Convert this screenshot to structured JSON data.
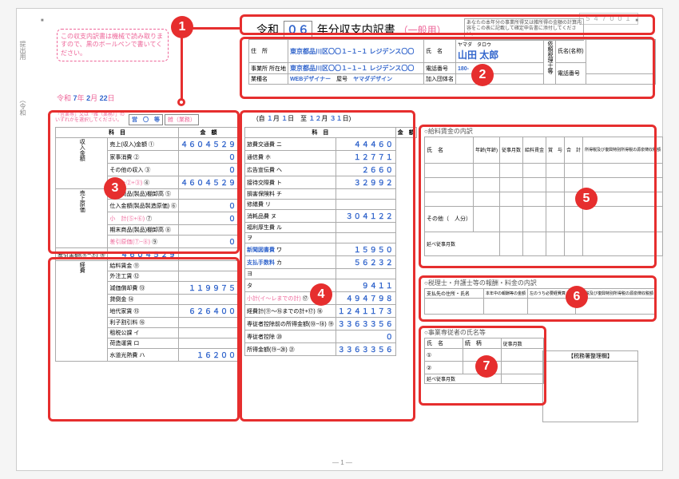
{
  "doc": {
    "title_prefix": "令和",
    "year": "０６",
    "title_suffix": "年分収支内訳書",
    "general": "（一般用）",
    "note": "あなたの本年分の事業所得又は雑所得の金額の計算内容をこの表に記載して確定申告書に添付してください。",
    "pink_note": "この収支内訳書は機械で読み取りますので、黒のボールペンで書いてください。",
    "footer": "— 1 —",
    "code": "５４７００１"
  },
  "side": {
    "tab1": "提出用",
    "tab2": "（令和"
  },
  "date": {
    "era": "令和",
    "y": "7",
    "m": "2",
    "d": "22",
    "suffix": "年　月　日"
  },
  "header": {
    "addr_label": "住　所",
    "addr": "東京都品川区〇〇１−１−１\nレジデンス〇〇",
    "biz_addr_label": "事業所\n所在地",
    "biz_addr": "東京都品川区〇〇１−１−１\nレジデンス〇〇",
    "occ_label": "業種名",
    "occ": "WEBデザイナー",
    "shop_label": "屋号",
    "shop": "ヤマダデザイン",
    "name_label": "氏　名",
    "name_kana": "ヤマダ　タロウ",
    "name": "山田 太郎",
    "tel_label": "電話番号",
    "tel": "180-　-　",
    "org_label": "加入団体名",
    "agent_label": "依頼税理士等",
    "agent_name_label": "氏名(名称)",
    "agent_tel_label": "電話番号"
  },
  "eigyou": {
    "label": "「営業等」又は「雑（業務）」のいずれかを選択してください。",
    "opt1": "営　〇　等",
    "opt2": "雑（業務）"
  },
  "period": {
    "from_m": "１",
    "from_d": "１",
    "to_m": "１２",
    "to_d": "３１",
    "text": "(自　月　日　至　月　日)"
  },
  "left_table": {
    "headers": [
      "科　目",
      "金　額"
    ],
    "group1_label": "収入金額",
    "rows1": [
      {
        "label": "売上(収入)金額",
        "mark": "①",
        "val": "４６０４５２９"
      },
      {
        "label": "家事消費",
        "mark": "②",
        "val": "０"
      },
      {
        "label": "その他の収入",
        "mark": "③",
        "val": "０"
      },
      {
        "label": "計(①+②+③)",
        "mark": "④",
        "val": "４６０４５２９",
        "pink": true
      }
    ],
    "group2_label": "売上原価",
    "rows2": [
      {
        "label": "期首商品(製品)棚卸高",
        "mark": "⑤",
        "val": ""
      },
      {
        "label": "仕入金額(製品製造原価)",
        "mark": "⑥",
        "val": "０"
      },
      {
        "label": "小　計(⑤+⑥)",
        "mark": "⑦",
        "val": "０",
        "pink": true
      },
      {
        "label": "期末商品(製品)棚卸高",
        "mark": "⑧",
        "val": ""
      },
      {
        "label": "差引原価(⑦−⑧)",
        "mark": "⑨",
        "val": "０",
        "pink": true
      }
    ],
    "gross": {
      "label": "差引金額(④−⑨)",
      "mark": "⑩",
      "val": "４６０４５２９"
    }
  },
  "exp_table": {
    "group_label": "経費",
    "rows": [
      {
        "label": "給料賃金",
        "mark": "⑪",
        "val": ""
      },
      {
        "label": "外注工賃",
        "mark": "⑫",
        "val": ""
      },
      {
        "label": "減価償却費",
        "mark": "⑬",
        "val": "１１９９７５"
      },
      {
        "label": "貸倒金",
        "mark": "⑭",
        "val": ""
      },
      {
        "label": "地代家賃",
        "mark": "⑮",
        "val": "６２６４００"
      },
      {
        "label": "利子割引料",
        "mark": "⑯",
        "val": ""
      },
      {
        "label": "租税公課",
        "mark": "イ",
        "val": ""
      },
      {
        "label": "荷造運賃",
        "mark": "ロ",
        "val": ""
      },
      {
        "label": "水道光熱費",
        "mark": "ハ",
        "val": "１６２００"
      }
    ]
  },
  "exp_table2": {
    "rows": [
      {
        "label": "旅費交通費",
        "mark": "ニ",
        "val": "４４４６０"
      },
      {
        "label": "通信費",
        "mark": "ホ",
        "val": "１２７７１"
      },
      {
        "label": "広告宣伝費",
        "mark": "ヘ",
        "val": "２６６０"
      },
      {
        "label": "接待交際費",
        "mark": "ト",
        "val": "３２９９２"
      },
      {
        "label": "損害保険料",
        "mark": "チ",
        "val": ""
      },
      {
        "label": "修繕費",
        "mark": "リ",
        "val": ""
      },
      {
        "label": "消耗品費",
        "mark": "ヌ",
        "val": "３０４１２２"
      },
      {
        "label": "福利厚生費",
        "mark": "ル",
        "val": ""
      },
      {
        "label": "",
        "mark": "ヲ",
        "val": ""
      },
      {
        "label": "新聞図書費",
        "mark": "ワ",
        "val": "１５９５０",
        "blue_label": true
      },
      {
        "label": "支払手数料",
        "mark": "カ",
        "val": "５６２３２",
        "blue_label": true
      },
      {
        "label": "",
        "mark": "ヨ",
        "val": ""
      },
      {
        "label": "",
        "mark": "タ",
        "val": "９４１１"
      },
      {
        "label": "小計(イ〜レまでの計)",
        "mark": "⑰",
        "val": "４９４７９８",
        "pink": true
      },
      {
        "label": "経費計(⑪〜⑯までの計+⑰)",
        "mark": "⑱",
        "val": "１２４１１７３"
      },
      {
        "label": "専従者控除前の所得金額(⑩−⑱)",
        "mark": "⑲",
        "val": "３３６３３５６"
      },
      {
        "label": "専従者控除",
        "mark": "⑳",
        "val": "０"
      },
      {
        "label": "所得金額(⑲−⑳)",
        "mark": "㉑",
        "val": "３３６３３５６"
      }
    ]
  },
  "sec5": {
    "title": "○給料賃金の内訳",
    "cols": [
      "氏　名",
      "年齢(年齢)",
      "従事月数",
      "給料賃金",
      "賞　与",
      "合　計",
      "所得税及び復興特別所得税の源泉徴収税額"
    ],
    "other": "その他（　人分）",
    "total": "延べ従事月数"
  },
  "sec6": {
    "title": "○税理士・弁護士等の報酬・料金の内訳",
    "cols": [
      "支払先の住所・氏名",
      "本年中の報酬等の金額",
      "左のうち必要経費算入額",
      "所得税及び復興特別所得税の源泉徴収税額"
    ]
  },
  "sec7": {
    "title": "○事業専従者の氏名等",
    "cols": [
      "氏　名",
      "続　柄",
      "従事月数"
    ],
    "total": "延べ従事月数"
  },
  "tax_office": {
    "label": "【税務署整理欄】"
  },
  "badges": {
    "1": "1",
    "2": "2",
    "3": "3",
    "4": "4",
    "5": "5",
    "6": "6",
    "7": "7"
  }
}
